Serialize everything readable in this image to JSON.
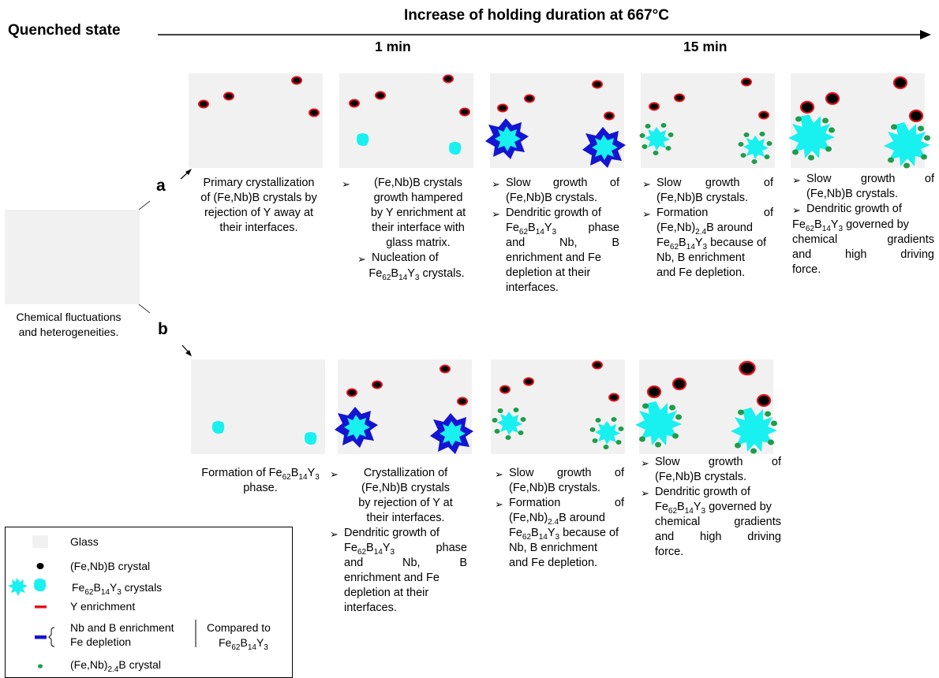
{
  "header": {
    "quenched": "Quenched state",
    "increase": "Increase of holding duration  at 667°C",
    "t1": "1 min",
    "t2": "15 min"
  },
  "rows": {
    "a_label": "a",
    "b_label": "b"
  },
  "initial": {
    "caption_line1": "Chemical fluctuations",
    "caption_line2": "and heterogeneities."
  },
  "row_a": {
    "cap1": [
      "Primary crystallization",
      "of (Fe,Nb)B crystals by",
      "rejection of Y away at",
      "their interfaces."
    ],
    "cap2": {
      "b1": [
        "(Fe,Nb)B crystals",
        "growth hampered",
        "by Y enrichment at",
        "their interface with",
        "glass matrix."
      ],
      "b2_pre": "Nucleation of",
      "b2_formula": [
        "Fe",
        "62",
        "B",
        "14",
        "Y",
        "3",
        " crystals."
      ]
    },
    "cap3": {
      "b1_l1": [
        "Slow",
        "growth",
        "of"
      ],
      "b1_l2": "(Fe,Nb)B crystals.",
      "b2_l1": "Dendritic growth of",
      "b2_l2_tail": "phase",
      "b2_l3": [
        "and",
        "Nb,",
        "B"
      ],
      "b2_l4": "enrichment and Fe",
      "b2_l5": "depletion at their",
      "b2_l6": "interfaces."
    },
    "cap4": {
      "b1_l1": [
        "Slow",
        "growth",
        "of"
      ],
      "b1_l2": "(Fe,Nb)B crystals.",
      "b2_l1": [
        "Formation",
        "of"
      ],
      "b2_l2_tail": "B   around",
      "b2_l3_tail": " because of",
      "b2_l4": "Nb, B enrichment",
      "b2_l5": "and Fe depletion."
    },
    "cap5": {
      "b1_l1": [
        "Slow",
        "growth",
        "of"
      ],
      "b1_l2": "(Fe,Nb)B crystals.",
      "b2_l1": "Dendritic growth of",
      "b2_l2_tail": " governed by",
      "b2_l3": [
        "chemical",
        "gradients"
      ],
      "b2_l4": [
        "and",
        "high",
        "driving"
      ],
      "b2_l5": "force."
    }
  },
  "row_b": {
    "cap1_pre": "Formation of ",
    "cap1_l2": "phase.",
    "cap2": {
      "b1": [
        "Crystallization of",
        "(Fe,Nb)B crystals",
        "by rejection of Y at",
        "their interfaces."
      ],
      "b2_l1": "Dendritic growth of",
      "b2_l2_tail": "phase",
      "b2_l3": [
        "and",
        "Nb,",
        "B"
      ],
      "b2_l4": "enrichment and Fe",
      "b2_l5": "depletion at their",
      "b2_l6": "interfaces."
    },
    "cap3": {
      "b1_l1": [
        "Slow",
        "growth",
        "of"
      ],
      "b1_l2": "(Fe,Nb)B crystals.",
      "b2_l1": [
        "Formation",
        "of"
      ],
      "b2_l2_tail": "B   around",
      "b2_l3_tail": " because of",
      "b2_l4": "Nb, B enrichment",
      "b2_l5": "and Fe depletion."
    },
    "cap4": {
      "b1_l1": [
        "Slow",
        "growth",
        "of"
      ],
      "b1_l2": "(Fe,Nb)B crystals.",
      "b2_l1": "Dendritic growth of",
      "b2_l2_tail": " governed by",
      "b2_l3": [
        "chemical",
        "gradients"
      ],
      "b2_l4": [
        "and",
        "high",
        "driving"
      ],
      "b2_l5": "force."
    }
  },
  "formula": {
    "fe": "Fe",
    "fe_sub": "62",
    "b": "B",
    "b_sub": "14",
    "y": "Y",
    "y_sub": "3",
    "fenb": "(Fe,Nb)",
    "fenb_sub": "2.4"
  },
  "legend": {
    "glass": "Glass",
    "fenbb": "(Fe,Nb)B crystal",
    "fe62_tail": " crystals",
    "y_enrich": "Y enrichment",
    "nb_b": "Nb and B enrichment",
    "fe_dep": "Fe depletion",
    "compared": "Compared to",
    "fenb24_tail": "B crystal"
  },
  "colors": {
    "glass": "#f1f1f1",
    "boride_core": "#000000",
    "y_rim": "#e0141b",
    "fe62": "#19f0f0",
    "nb_rim": "#1414d2",
    "fenb24": "#1e9c4a"
  }
}
